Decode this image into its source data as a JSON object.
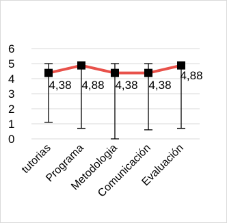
{
  "chart_data": {
    "type": "line",
    "categories": [
      "tutorias",
      "Programa",
      "Metodologia",
      "Comunicación",
      "Evaluación"
    ],
    "series": [
      {
        "values": [
          4.38,
          4.88,
          4.38,
          4.38,
          4.88
        ],
        "error_high": [
          5,
          5,
          5,
          5,
          5
        ],
        "error_low": [
          1.1,
          0.7,
          0,
          0.6,
          0.7
        ],
        "data_labels": [
          "4,38",
          "4,88",
          "4,38",
          "4,38",
          "4,88"
        ],
        "color": "#e8514a",
        "marker_color": "#000000"
      }
    ],
    "ylim": [
      0,
      6
    ],
    "yticks": [
      0,
      1,
      2,
      3,
      4,
      5,
      6
    ],
    "grid": true,
    "title": "",
    "xlabel": "",
    "ylabel": ""
  }
}
